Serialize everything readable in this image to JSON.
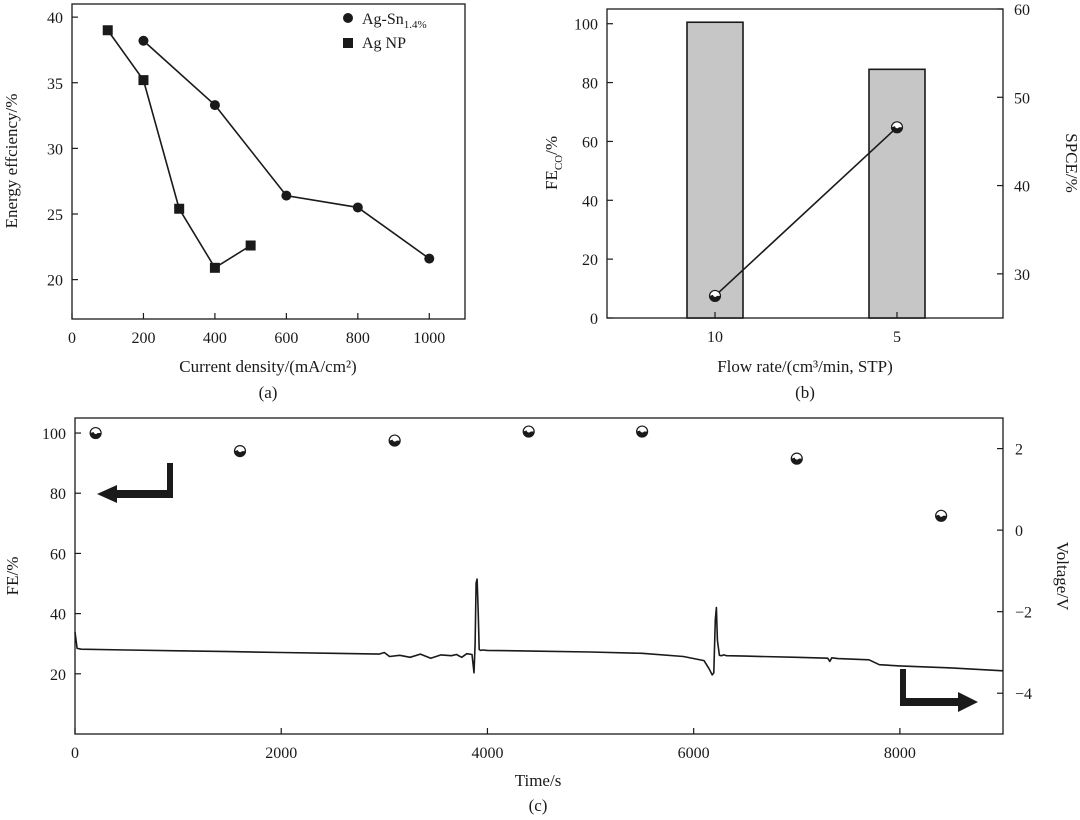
{
  "chart_data": [
    {
      "type": "line",
      "panel_label": "(a)",
      "xlabel": "Current density/(mA/cm²)",
      "ylabel": "Energy effciency/%",
      "xlim": [
        0,
        1100
      ],
      "ylim": [
        17,
        41
      ],
      "xticks": [
        0,
        200,
        400,
        600,
        800,
        1000
      ],
      "yticks": [
        20,
        25,
        30,
        35,
        40
      ],
      "series": [
        {
          "name": "Ag-Sn",
          "name_sub": "1.4%",
          "marker": "circle",
          "x": [
            200,
            400,
            600,
            800,
            1000
          ],
          "y": [
            38.2,
            33.3,
            26.4,
            25.5,
            21.6
          ]
        },
        {
          "name": "Ag NP",
          "marker": "square",
          "x": [
            100,
            200,
            300,
            400,
            500
          ],
          "y": [
            39.0,
            35.2,
            25.4,
            20.9,
            22.6
          ]
        }
      ]
    },
    {
      "type": "bar",
      "panel_label": "(b)",
      "xlabel": "Flow rate/(cm³/min, STP)",
      "ylabel_main": "FE",
      "ylabel_sub": "CO",
      "ylabel_tail": "/%",
      "y2label": "SPCE/%",
      "categories": [
        "10",
        "5"
      ],
      "bar_values": [
        100.5,
        84.5
      ],
      "ylim": [
        0,
        105
      ],
      "yticks": [
        0,
        20,
        40,
        60,
        80,
        100
      ],
      "y2lim": [
        25,
        60
      ],
      "y2ticks": [
        30,
        40,
        50,
        60
      ],
      "spce_values": [
        27.5,
        46.6
      ]
    },
    {
      "type": "line",
      "panel_label": "(c)",
      "xlabel": "Time/s",
      "ylabel": "FE/%",
      "y2label": "Voltage/V",
      "xlim": [
        0,
        9000
      ],
      "ylim": [
        0,
        105
      ],
      "xticks": [
        0,
        2000,
        4000,
        6000,
        8000
      ],
      "yticks": [
        20,
        40,
        60,
        80,
        100
      ],
      "y2lim": [
        -5,
        2.75
      ],
      "y2ticks": [
        -4,
        -2,
        0,
        2
      ],
      "fe_points": {
        "x": [
          200,
          1600,
          3100,
          4400,
          5500,
          7000,
          8400
        ],
        "y": [
          100,
          94,
          97.5,
          100.5,
          100.5,
          91.5,
          72.5
        ]
      },
      "voltage_trace": {
        "x": [
          0,
          20,
          60,
          500,
          1000,
          1500,
          2000,
          2500,
          2950,
          3000,
          3050,
          3150,
          3250,
          3350,
          3450,
          3550,
          3650,
          3700,
          3750,
          3800,
          3850,
          3870,
          3880,
          3890,
          3900,
          3910,
          3920,
          3935,
          3950,
          4000,
          4500,
          5000,
          5500,
          5900,
          6100,
          6150,
          6180,
          6195,
          6210,
          6220,
          6230,
          6250,
          6270,
          6290,
          6320,
          6500,
          7000,
          7300,
          7320,
          7340,
          7400,
          7700,
          7800,
          8000,
          8500,
          9000
        ],
        "y": [
          -2.5,
          -2.9,
          -2.92,
          -2.94,
          -2.96,
          -2.98,
          -3.0,
          -3.02,
          -3.04,
          -3.0,
          -3.1,
          -3.07,
          -3.12,
          -3.04,
          -3.14,
          -3.06,
          -3.08,
          -3.05,
          -3.12,
          -3.03,
          -3.05,
          -3.5,
          -2.8,
          -1.3,
          -1.2,
          -2.0,
          -2.93,
          -2.95,
          -2.94,
          -2.95,
          -2.97,
          -2.99,
          -3.02,
          -3.1,
          -3.2,
          -3.4,
          -3.55,
          -3.5,
          -2.2,
          -1.9,
          -2.7,
          -3.07,
          -3.08,
          -3.06,
          -3.08,
          -3.09,
          -3.12,
          -3.14,
          -3.22,
          -3.13,
          -3.15,
          -3.18,
          -3.3,
          -3.33,
          -3.38,
          -3.45
        ]
      }
    }
  ]
}
